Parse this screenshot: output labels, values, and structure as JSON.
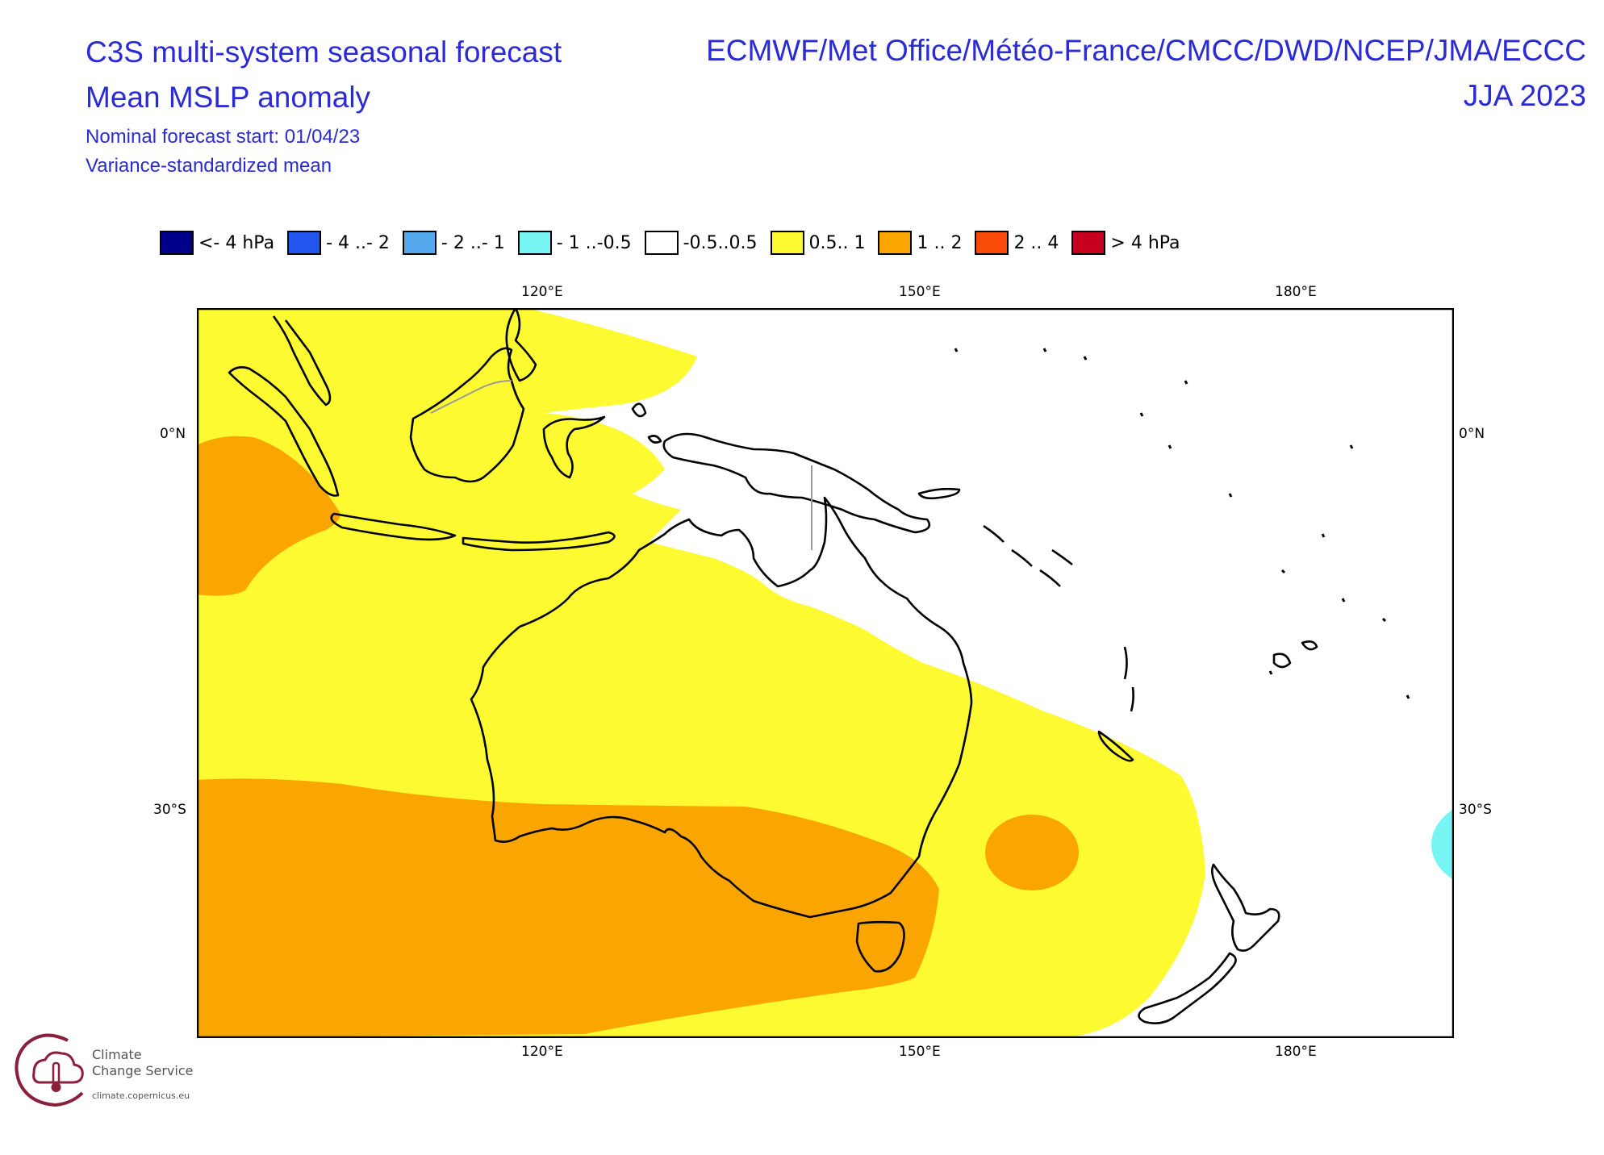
{
  "header": {
    "title_line1": "C3S multi-system seasonal forecast",
    "title_line2": "Mean MSLP anomaly",
    "start_line": "Nominal forecast start: 01/04/23",
    "method_line": "Variance-standardized mean",
    "centres": "ECMWF/Met Office/Météo-France/CMCC/DWD/NCEP/JMA/ECCC",
    "season": "JJA 2023"
  },
  "legend": [
    {
      "label": "<- 4 hPa",
      "color": "#00008b"
    },
    {
      "label": "- 4 ..- 2",
      "color": "#2255ee"
    },
    {
      "label": "- 2 ..- 1",
      "color": "#55aaee"
    },
    {
      "label": "- 1 ..-0.5",
      "color": "#77f5f5"
    },
    {
      "label": "-0.5..0.5",
      "color": "#ffffff"
    },
    {
      "label": "0.5.. 1",
      "color": "#fdfa32"
    },
    {
      "label": "1 .. 2",
      "color": "#fba600"
    },
    {
      "label": "2 .. 4",
      "color": "#fa4a0a"
    },
    {
      "label": ">  4 hPa",
      "color": "#c80020"
    }
  ],
  "axes": {
    "top_labels": [
      "120°E",
      "150°E",
      "180°E"
    ],
    "bottom_labels": [
      "120°E",
      "150°E",
      "180°E"
    ],
    "left_labels": [
      "0°N",
      "30°S"
    ],
    "right_labels": [
      "0°N",
      "30°S"
    ]
  },
  "map": {
    "region": "Australia / Maritime Continent / SW Pacific",
    "lon_range": [
      100,
      200
    ],
    "lat_range": [
      10,
      -48
    ]
  },
  "logo": {
    "line1": "Climate",
    "line2": "Change Service",
    "url": "climate.copernicus.eu"
  }
}
